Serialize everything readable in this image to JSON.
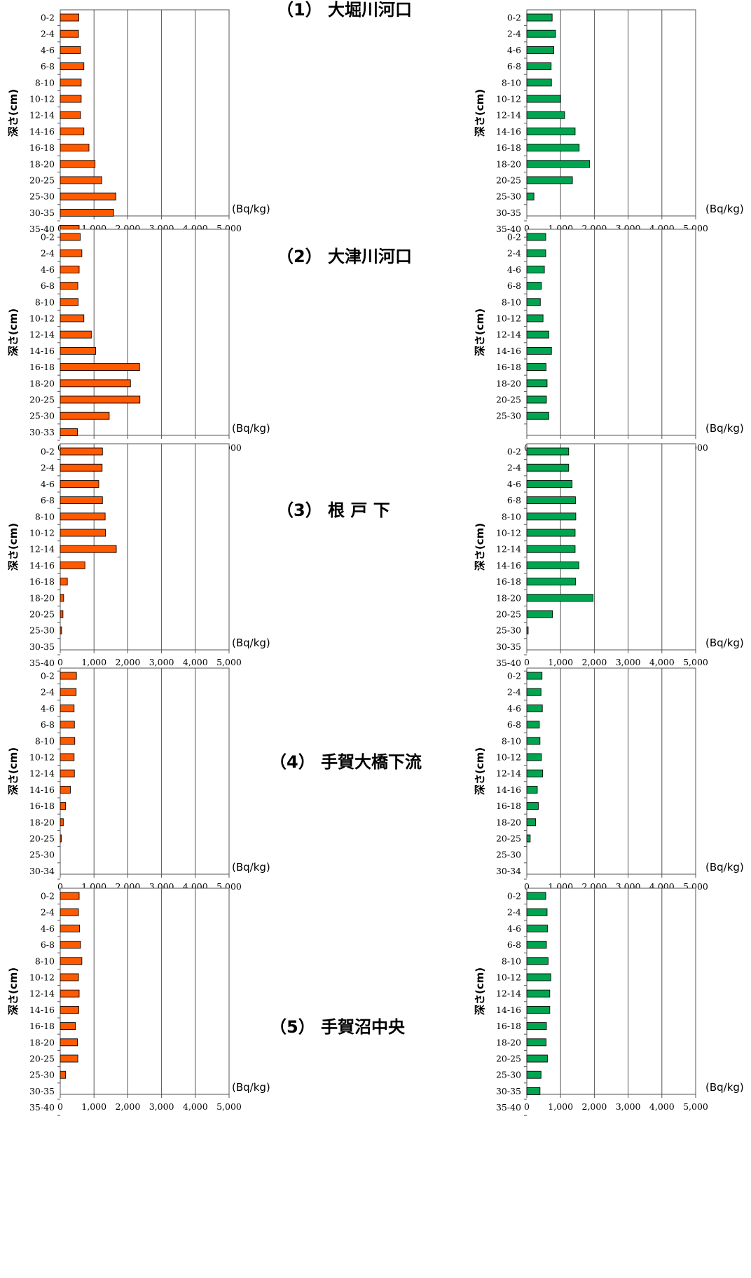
{
  "unit_label": "(Bq/kg)",
  "depth_axis_label": "深さ(cm)",
  "x_ticks": [
    "0",
    "1,000",
    "2,000",
    "3,000",
    "4,000",
    "5,000"
  ],
  "colors": {
    "left_series": "#ff5a00",
    "right_series": "#00a550"
  },
  "panels": [
    {
      "title": "（1） 大堀川河口"
    },
    {
      "title": "（2） 大津川河口"
    },
    {
      "title": "（3） 根 戸 下"
    },
    {
      "title": "（4） 手賀大橋下流"
    },
    {
      "title": "（5） 手賀沼中央"
    }
  ],
  "chart_data": [
    {
      "type": "bar",
      "panel": 1,
      "side": "left",
      "xlabel": "(Bq/kg)",
      "ylabel": "深さ(cm)",
      "xlim": [
        0,
        5000
      ],
      "categories": [
        "0-2",
        "2-4",
        "4-6",
        "6-8",
        "8-10",
        "10-12",
        "12-14",
        "14-16",
        "16-18",
        "18-20",
        "20-25",
        "25-30",
        "30-35",
        "35-40"
      ],
      "values": [
        550,
        540,
        600,
        700,
        620,
        620,
        600,
        700,
        850,
        1030,
        1230,
        1650,
        1580,
        560
      ]
    },
    {
      "type": "bar",
      "panel": 1,
      "side": "right",
      "xlabel": "(Bq/kg)",
      "ylabel": "深さ(cm)",
      "xlim": [
        0,
        5000
      ],
      "categories": [
        "0-2",
        "2-4",
        "4-6",
        "6-8",
        "8-10",
        "10-12",
        "12-14",
        "14-16",
        "16-18",
        "18-20",
        "20-25",
        "25-30",
        "30-35",
        "35-40"
      ],
      "values": [
        750,
        850,
        800,
        720,
        730,
        1000,
        1120,
        1430,
        1550,
        1860,
        1350,
        210,
        null,
        null
      ]
    },
    {
      "type": "bar",
      "panel": 2,
      "side": "left",
      "xlabel": "(Bq/kg)",
      "ylabel": "深さ(cm)",
      "xlim": [
        0,
        5000
      ],
      "categories": [
        "0-2",
        "2-4",
        "4-6",
        "6-8",
        "8-10",
        "10-12",
        "12-14",
        "14-16",
        "16-18",
        "18-20",
        "20-25",
        "25-30",
        "30-33"
      ],
      "values": [
        590,
        640,
        560,
        520,
        530,
        700,
        920,
        1050,
        2350,
        2080,
        2360,
        1450,
        510
      ]
    },
    {
      "type": "bar",
      "panel": 2,
      "side": "right",
      "xlabel": "(Bq/kg)",
      "ylabel": "深さ(cm)",
      "xlim": [
        0,
        5000
      ],
      "categories": [
        "0-2",
        "2-4",
        "4-6",
        "6-8",
        "8-10",
        "10-12",
        "12-14",
        "14-16",
        "16-18",
        "18-20",
        "20-25",
        "25-30"
      ],
      "values": [
        560,
        560,
        520,
        430,
        400,
        480,
        650,
        730,
        570,
        600,
        580,
        650
      ]
    },
    {
      "type": "bar",
      "panel": 3,
      "side": "left",
      "xlabel": "(Bq/kg)",
      "ylabel": "深さ(cm)",
      "xlim": [
        0,
        5000
      ],
      "categories": [
        "0-2",
        "2-4",
        "4-6",
        "6-8",
        "8-10",
        "10-12",
        "12-14",
        "14-16",
        "16-18",
        "18-20",
        "20-25",
        "25-30",
        "30-35",
        "35-40"
      ],
      "values": [
        1250,
        1240,
        1140,
        1250,
        1330,
        1340,
        1660,
        730,
        210,
        100,
        80,
        40,
        null,
        null
      ]
    },
    {
      "type": "bar",
      "panel": 3,
      "side": "right",
      "xlabel": "(Bq/kg)",
      "ylabel": "深さ(cm)",
      "xlim": [
        0,
        5000
      ],
      "categories": [
        "0-2",
        "2-4",
        "4-6",
        "6-8",
        "8-10",
        "10-12",
        "12-14",
        "14-16",
        "16-18",
        "18-20",
        "20-25",
        "25-30",
        "30-35",
        "35-40"
      ],
      "values": [
        1240,
        1240,
        1340,
        1440,
        1450,
        1430,
        1430,
        1540,
        1440,
        1960,
        760,
        40,
        null,
        null
      ]
    },
    {
      "type": "bar",
      "panel": 4,
      "side": "left",
      "xlabel": "(Bq/kg)",
      "ylabel": "深さ(cm)",
      "xlim": [
        0,
        5000
      ],
      "categories": [
        "0-2",
        "2-4",
        "4-6",
        "6-8",
        "8-10",
        "10-12",
        "12-14",
        "14-16",
        "16-18",
        "18-20",
        "20-25",
        "25-30",
        "30-34"
      ],
      "values": [
        480,
        470,
        410,
        420,
        430,
        410,
        420,
        300,
        160,
        90,
        30,
        null,
        null
      ]
    },
    {
      "type": "bar",
      "panel": 4,
      "side": "right",
      "xlabel": "(Bq/kg)",
      "ylabel": "深さ(cm)",
      "xlim": [
        0,
        5000
      ],
      "categories": [
        "0-2",
        "2-4",
        "4-6",
        "6-8",
        "8-10",
        "10-12",
        "12-14",
        "14-16",
        "16-18",
        "18-20",
        "20-25",
        "25-30",
        "30-34"
      ],
      "values": [
        450,
        420,
        460,
        370,
        390,
        430,
        470,
        310,
        340,
        260,
        100,
        null,
        null
      ]
    },
    {
      "type": "bar",
      "panel": 5,
      "side": "left",
      "xlabel": "(Bq/kg)",
      "ylabel": "深さ(cm)",
      "xlim": [
        0,
        5000
      ],
      "categories": [
        "0-2",
        "2-4",
        "4-6",
        "6-8",
        "8-10",
        "10-12",
        "12-14",
        "14-16",
        "16-18",
        "18-20",
        "20-25",
        "25-30",
        "30-35",
        "35-40"
      ],
      "values": [
        560,
        540,
        570,
        600,
        640,
        540,
        560,
        550,
        450,
        510,
        520,
        160,
        null,
        null
      ]
    },
    {
      "type": "bar",
      "panel": 5,
      "side": "right",
      "xlabel": "(Bq/kg)",
      "ylabel": "深さ(cm)",
      "xlim": [
        0,
        5000
      ],
      "categories": [
        "0-2",
        "2-4",
        "4-6",
        "6-8",
        "8-10",
        "10-12",
        "12-14",
        "14-16",
        "16-18",
        "18-20",
        "20-25",
        "25-30",
        "30-35",
        "35-40"
      ],
      "values": [
        560,
        600,
        610,
        580,
        630,
        710,
        680,
        680,
        580,
        570,
        610,
        420,
        390,
        null
      ]
    }
  ]
}
